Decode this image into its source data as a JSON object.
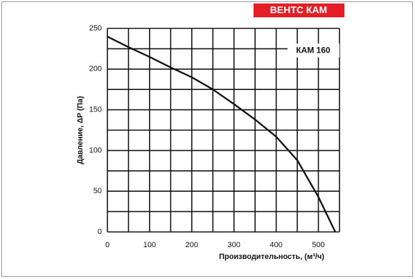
{
  "chart_data": {
    "type": "line",
    "banner": "ВЕНТС КАМ",
    "annotation": "КАМ 160",
    "x_label": "Производительность, (м³/ч)",
    "y_label": "Давление, ΔP (Па)",
    "x": [
      0,
      50,
      100,
      150,
      200,
      250,
      300,
      350,
      400,
      450,
      500,
      540
    ],
    "series": [
      {
        "name": "КАМ 160",
        "color": "#111111",
        "values": [
          240,
          227,
          215,
          202,
          190,
          175,
          157,
          138,
          117,
          88,
          43,
          0
        ]
      }
    ],
    "xlim": [
      0,
      550
    ],
    "xticks": [
      0,
      100,
      200,
      300,
      400,
      500
    ],
    "ylim": [
      0,
      250
    ],
    "yticks": [
      0,
      50,
      100,
      150,
      200,
      250
    ],
    "x_minor_grid": [
      50,
      150,
      250,
      350,
      450,
      550
    ],
    "y_minor_grid": [
      25,
      75,
      125,
      175,
      225
    ],
    "grid": true,
    "banner_color": "#e31e24"
  }
}
